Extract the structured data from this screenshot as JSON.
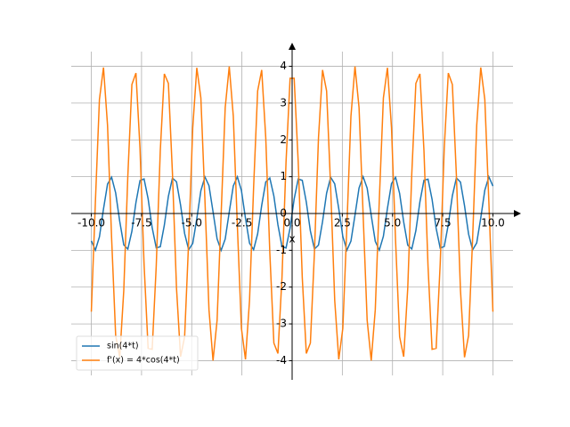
{
  "chart_data": {
    "type": "line",
    "xlabel": "x",
    "x": [
      -10,
      -9.798,
      -9.596,
      -9.394,
      -9.192,
      -8.99,
      -8.788,
      -8.586,
      -8.384,
      -8.182,
      -7.98,
      -7.778,
      -7.576,
      -7.374,
      -7.172,
      -6.97,
      -6.768,
      -6.566,
      -6.364,
      -6.162,
      -5.96,
      -5.758,
      -5.556,
      -5.354,
      -5.152,
      -4.949,
      -4.747,
      -4.545,
      -4.343,
      -4.141,
      -3.939,
      -3.737,
      -3.535,
      -3.333,
      -3.131,
      -2.929,
      -2.727,
      -2.525,
      -2.323,
      -2.121,
      -1.919,
      -1.717,
      -1.515,
      -1.313,
      -1.111,
      -0.909,
      -0.707,
      -0.505,
      -0.303,
      -0.101,
      0.101,
      0.303,
      0.505,
      0.707,
      0.909,
      1.111,
      1.313,
      1.515,
      1.717,
      1.919,
      2.121,
      2.323,
      2.525,
      2.727,
      2.929,
      3.131,
      3.333,
      3.535,
      3.737,
      3.939,
      4.141,
      4.343,
      4.545,
      4.747,
      4.949,
      5.152,
      5.354,
      5.556,
      5.758,
      5.96,
      6.162,
      6.364,
      6.566,
      6.768,
      6.97,
      7.172,
      7.374,
      7.576,
      7.778,
      7.98,
      8.182,
      8.384,
      8.586,
      8.788,
      8.99,
      9.192,
      9.394,
      9.596,
      9.798,
      10
    ],
    "series": [
      {
        "name": "sin(4*t)",
        "color": "#1f77b4",
        "values": [
          -0.745,
          -0.997,
          -0.633,
          0.123,
          0.802,
          0.986,
          0.56,
          -0.212,
          -0.853,
          -0.967,
          -0.482,
          0.3,
          0.897,
          0.939,
          0.401,
          -0.385,
          -0.933,
          -0.904,
          -0.316,
          0.467,
          0.962,
          0.862,
          0.229,
          -0.545,
          -0.983,
          -0.813,
          -0.14,
          0.619,
          0.995,
          0.756,
          0.05,
          -0.688,
          -1.0,
          -0.694,
          0.041,
          0.751,
          0.996,
          0.626,
          -0.131,
          -0.807,
          -0.984,
          -0.553,
          0.221,
          0.858,
          0.964,
          0.475,
          -0.308,
          -0.901,
          -0.936,
          -0.393,
          0.393,
          0.936,
          0.901,
          0.308,
          -0.475,
          -0.964,
          -0.858,
          -0.221,
          0.553,
          0.984,
          0.807,
          0.131,
          -0.626,
          -0.996,
          -0.751,
          -0.041,
          0.694,
          1.0,
          0.688,
          -0.05,
          -0.756,
          -0.995,
          -0.619,
          0.14,
          0.813,
          0.983,
          0.545,
          -0.229,
          -0.862,
          -0.962,
          -0.467,
          0.316,
          0.904,
          0.933,
          0.385,
          -0.401,
          -0.939,
          -0.897,
          -0.3,
          0.482,
          0.967,
          0.853,
          0.212,
          -0.56,
          -0.986,
          -0.802,
          -0.123,
          0.633,
          0.997,
          0.745
        ]
      },
      {
        "name": "f'(x) = 4*cos(4*t)",
        "color": "#ff7f0e",
        "values": [
          -2.668,
          0.312,
          3.1,
          3.968,
          2.388,
          -0.672,
          -3.316,
          -3.908,
          -2.088,
          1.024,
          3.504,
          3.816,
          1.768,
          -1.372,
          -3.664,
          -3.692,
          -1.436,
          1.708,
          3.796,
          3.536,
          1.092,
          -2.028,
          -3.892,
          -3.352,
          -0.74,
          2.332,
          3.96,
          3.14,
          0.38,
          -2.616,
          -3.996,
          -2.904,
          -0.016,
          2.88,
          3.996,
          2.644,
          -0.344,
          -3.12,
          -3.964,
          -2.36,
          0.704,
          3.332,
          3.9,
          2.056,
          -1.06,
          -3.52,
          -3.804,
          -1.74,
          1.404,
          3.676,
          3.676,
          1.404,
          -1.74,
          -3.804,
          -3.52,
          -1.06,
          2.056,
          3.9,
          3.332,
          0.704,
          -2.36,
          -3.964,
          -3.12,
          -0.344,
          2.644,
          3.996,
          2.88,
          -0.016,
          -2.904,
          -3.996,
          -2.616,
          0.38,
          3.14,
          3.96,
          2.332,
          -0.74,
          -3.352,
          -3.892,
          -2.028,
          1.092,
          3.536,
          3.796,
          1.708,
          -1.436,
          -3.692,
          -3.664,
          -1.372,
          1.768,
          3.816,
          3.504,
          1.024,
          -2.088,
          -3.908,
          -3.316,
          -0.672,
          2.388,
          3.968,
          3.1,
          0.312,
          -2.668
        ]
      }
    ],
    "xlim": [
      -11,
      11
    ],
    "ylim": [
      -4.4,
      4.4
    ],
    "xticks": [
      {
        "value": -10,
        "label": "-10.0"
      },
      -7.5,
      {
        "value": -5,
        "label": "-5.0"
      },
      -2.5,
      {
        "value": 0,
        "label": "0.0"
      },
      2.5,
      {
        "value": 5,
        "label": "5.0"
      },
      7.5,
      {
        "value": 10,
        "label": "10.0"
      }
    ],
    "yticks": [
      -4,
      -3,
      -2,
      -1,
      0,
      1,
      2,
      3,
      4
    ],
    "grid": true,
    "legend": "lower left"
  }
}
